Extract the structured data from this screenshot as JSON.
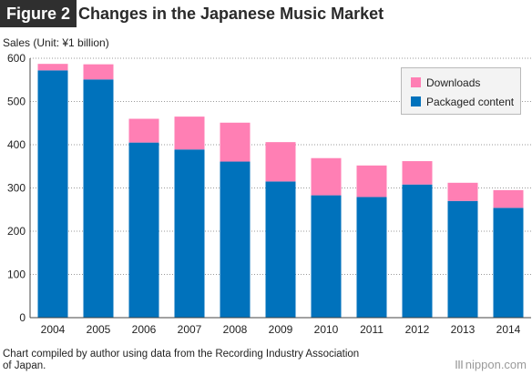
{
  "header": {
    "figure_label": "Figure 2",
    "title": "Changes in the Japanese Music Market"
  },
  "chart_data": {
    "type": "bar",
    "stacked": true,
    "ylabel": "Sales (Unit: ¥1 billion)",
    "ylim": [
      0,
      600
    ],
    "yticks": [
      0,
      100,
      200,
      300,
      400,
      500,
      600
    ],
    "grid": "horizontal dotted",
    "legend_position": "top-right",
    "categories": [
      "2004",
      "2005",
      "2006",
      "2007",
      "2008",
      "2009",
      "2010",
      "2011",
      "2012",
      "2013",
      "2014"
    ],
    "series": [
      {
        "name": "Packaged content",
        "color": "#0072bc",
        "values": [
          572,
          551,
          405,
          389,
          361,
          315,
          283,
          279,
          308,
          270,
          254
        ]
      },
      {
        "name": "Downloads",
        "color": "#ff7fb4",
        "values": [
          15,
          35,
          55,
          76,
          90,
          91,
          86,
          73,
          54,
          42,
          41
        ]
      }
    ]
  },
  "legend": {
    "downloads": "Downloads",
    "packaged": "Packaged content"
  },
  "footer": {
    "source": "Chart compiled by author using data from the Recording Industry Association of Japan.",
    "brand": "nippon.com"
  }
}
